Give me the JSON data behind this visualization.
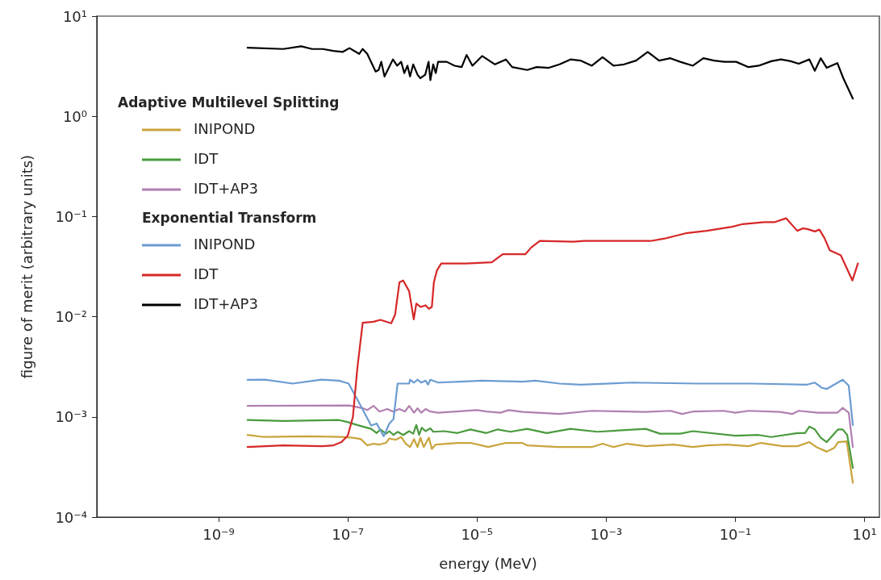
{
  "chart_data": {
    "type": "line",
    "xlabel": "energy (MeV)",
    "ylabel": "figure of merit (arbitrary units)",
    "log": "xy",
    "grid": false,
    "legend": "top left",
    "marker": "none",
    "line_style": "solid",
    "xlim": [
      1.3e-11,
      17
    ],
    "ylim": [
      0.0001,
      10
    ],
    "xticks": [
      {
        "value": 1e-09,
        "label": "10⁻⁹"
      },
      {
        "value": 1e-07,
        "label": "10⁻⁷"
      },
      {
        "value": 1e-05,
        "label": "10⁻⁵"
      },
      {
        "value": 0.001,
        "label": "10⁻³"
      },
      {
        "value": 0.1,
        "label": "10⁻¹"
      },
      {
        "value": 10,
        "label": "10¹"
      }
    ],
    "yticks": [
      {
        "value": 0.0001,
        "label": "10⁻⁴"
      },
      {
        "value": 0.001,
        "label": "10⁻³"
      },
      {
        "value": 0.01,
        "label": "10⁻²"
      },
      {
        "value": 0.1,
        "label": "10⁻¹"
      },
      {
        "value": 1,
        "label": "10⁰"
      },
      {
        "value": 10,
        "label": "10¹"
      }
    ],
    "annotations": [
      "Adaptive Multilevel Splitting",
      "Exponential Transform"
    ],
    "series": [
      {
        "name": "INIPOND",
        "color": "#c9a43c",
        "x": [
          2.8e-09,
          5e-09,
          2.5e-08,
          7.9e-08,
          1.2e-07,
          1.6e-07,
          2e-07,
          2.5e-07,
          3.1e-07,
          3.9e-07,
          4.4e-07,
          5.5e-07,
          6.7e-07,
          7.9e-07,
          9.2e-07,
          1.06e-06,
          1.2e-06,
          1.33e-06,
          1.5e-06,
          1.8e-06,
          2e-06,
          2.3e-06,
          5e-06,
          7.9e-06,
          1.5e-05,
          2.8e-05,
          5e-05,
          6e-05,
          0.00018,
          0.0006,
          0.00088,
          0.0013,
          0.0021,
          0.0041,
          0.011,
          0.022,
          0.037,
          0.074,
          0.16,
          0.25,
          0.54,
          0.92,
          1.4,
          1.8,
          2.6,
          3.4,
          3.9,
          5.3,
          6.6
        ],
        "values": [
          0.00066,
          0.00063,
          0.00064,
          0.00063,
          0.00062,
          0.0006,
          0.00052,
          0.00054,
          0.00053,
          0.00055,
          0.00061,
          0.00059,
          0.00063,
          0.00054,
          0.0005,
          0.0006,
          0.0005,
          0.00062,
          0.0005,
          0.00062,
          0.00048,
          0.00053,
          0.00055,
          0.00055,
          0.0005,
          0.00055,
          0.00055,
          0.00052,
          0.0005,
          0.0005,
          0.00054,
          0.0005,
          0.00054,
          0.00051,
          0.00053,
          0.0005,
          0.00052,
          0.00053,
          0.00051,
          0.00055,
          0.00051,
          0.00051,
          0.00056,
          0.0005,
          0.00045,
          0.00049,
          0.00056,
          0.00057,
          0.00022
        ]
      },
      {
        "name": "IDT",
        "color": "#4a9a3e",
        "x": [
          2.8e-09,
          1e-08,
          7.3e-08,
          9.8e-08,
          1.4e-07,
          2.3e-07,
          2.8e-07,
          3.2e-07,
          3.9e-07,
          4.4e-07,
          5.1e-07,
          5.9e-07,
          7.2e-07,
          8.9e-07,
          1.03e-06,
          1.15e-06,
          1.27e-06,
          1.4e-06,
          1.6e-06,
          1.9e-06,
          2.1e-06,
          3.1e-06,
          5e-06,
          7.9e-06,
          1.4e-05,
          2.1e-05,
          3.3e-05,
          6e-05,
          0.00012,
          0.00028,
          0.00073,
          0.0041,
          0.0068,
          0.014,
          0.022,
          0.1,
          0.23,
          0.36,
          0.92,
          1.2,
          1.4,
          1.7,
          2.1,
          2.6,
          3.9,
          4.6,
          5.4,
          6.6
        ],
        "values": [
          0.00093,
          0.00091,
          0.00093,
          0.00089,
          0.00083,
          0.00076,
          0.00069,
          0.00075,
          0.00068,
          0.00072,
          0.00066,
          0.00071,
          0.00066,
          0.00072,
          0.00068,
          0.00083,
          0.00066,
          0.00078,
          0.00072,
          0.00077,
          0.00071,
          0.00072,
          0.00069,
          0.00075,
          0.00069,
          0.00075,
          0.00071,
          0.00076,
          0.00069,
          0.00076,
          0.00071,
          0.00076,
          0.00068,
          0.00068,
          0.00072,
          0.00065,
          0.00066,
          0.00063,
          0.00069,
          0.00069,
          0.0008,
          0.00075,
          0.00062,
          0.00056,
          0.00075,
          0.00075,
          0.00066,
          0.00031
        ]
      },
      {
        "name": "IDT+AP3",
        "color": "#b07fb0",
        "x": [
          2.8e-09,
          1.06e-07,
          1.7e-07,
          2e-07,
          2.5e-07,
          3.1e-07,
          4.1e-07,
          5e-07,
          6.3e-07,
          7.7e-07,
          8.9e-07,
          1.06e-06,
          1.2e-06,
          1.37e-06,
          1.6e-06,
          1.9e-06,
          2.5e-06,
          1e-05,
          1.4e-05,
          2.3e-05,
          3.1e-05,
          5.1e-05,
          0.00019,
          0.0006,
          0.0041,
          0.0099,
          0.015,
          0.022,
          0.066,
          0.1,
          0.16,
          0.49,
          0.76,
          0.96,
          1.9,
          3.8,
          4.6,
          5.7,
          6.6
        ],
        "values": [
          0.00129,
          0.0013,
          0.00122,
          0.00117,
          0.00129,
          0.00113,
          0.0012,
          0.00113,
          0.0012,
          0.00113,
          0.00129,
          0.0011,
          0.00122,
          0.0011,
          0.0012,
          0.00113,
          0.0011,
          0.00117,
          0.00113,
          0.0011,
          0.00117,
          0.00112,
          0.00107,
          0.00115,
          0.00112,
          0.00115,
          0.00107,
          0.00113,
          0.00115,
          0.0011,
          0.00115,
          0.00112,
          0.00107,
          0.00115,
          0.0011,
          0.0011,
          0.00123,
          0.0011,
          0.0005
        ]
      },
      {
        "name": "INIPOND",
        "color": "#6b9bd2",
        "x": [
          2.8e-09,
          5.2e-09,
          1.4e-08,
          3.9e-08,
          7.3e-08,
          1.03e-07,
          1.4e-07,
          2.3e-07,
          2.8e-07,
          3.6e-07,
          4.4e-07,
          5.1e-07,
          5.9e-07,
          8.9e-07,
          9.2e-07,
          1.06e-06,
          1.2e-06,
          1.37e-06,
          1.6e-06,
          1.74e-06,
          1.9e-06,
          2.5e-06,
          5.5e-06,
          1.2e-05,
          5.1e-05,
          8e-05,
          0.00019,
          0.0004,
          0.0025,
          0.026,
          0.18,
          1.3,
          1.7,
          2.2,
          2.6,
          3.4,
          4.6,
          5.7,
          6.6
        ],
        "values": [
          0.00234,
          0.00235,
          0.00215,
          0.00235,
          0.0023,
          0.00215,
          0.0015,
          0.00082,
          0.00086,
          0.00064,
          0.00086,
          0.00095,
          0.00215,
          0.00215,
          0.00235,
          0.0022,
          0.00235,
          0.0022,
          0.0023,
          0.0021,
          0.00235,
          0.0022,
          0.00225,
          0.0023,
          0.00225,
          0.0023,
          0.00215,
          0.0021,
          0.0022,
          0.00215,
          0.00215,
          0.0021,
          0.0022,
          0.00195,
          0.0019,
          0.0021,
          0.00235,
          0.00205,
          0.00083
        ]
      },
      {
        "name": "IDT",
        "color": "#d62728",
        "x": [
          2.8e-09,
          1e-08,
          4e-08,
          6e-08,
          8e-08,
          1e-07,
          1.2e-07,
          1.4e-07,
          1.7e-07,
          2.5e-07,
          3.2e-07,
          4.7e-07,
          5.4e-07,
          6.3e-07,
          7.2e-07,
          8.9e-07,
          1.05e-06,
          1.15e-06,
          1.35e-06,
          1.6e-06,
          1.8e-06,
          2e-06,
          2.15e-06,
          2.4e-06,
          2.8e-06,
          6.9e-06,
          1.7e-05,
          2.5e-05,
          5.6e-05,
          6.9e-05,
          9.4e-05,
          0.00031,
          0.00046,
          0.0049,
          0.0078,
          0.017,
          0.036,
          0.089,
          0.13,
          0.28,
          0.41,
          0.61,
          0.91,
          1.1,
          1.3,
          1.7,
          2,
          2.4,
          2.9,
          4.3,
          6.5,
          7.9
        ],
        "values": [
          0.0005,
          0.00052,
          0.00051,
          0.00052,
          0.00056,
          0.00065,
          0.001,
          0.003,
          0.0087,
          0.0089,
          0.0093,
          0.0086,
          0.0105,
          0.022,
          0.023,
          0.018,
          0.0094,
          0.0135,
          0.0125,
          0.013,
          0.012,
          0.0125,
          0.022,
          0.029,
          0.034,
          0.034,
          0.035,
          0.042,
          0.042,
          0.049,
          0.057,
          0.056,
          0.057,
          0.057,
          0.06,
          0.068,
          0.072,
          0.079,
          0.084,
          0.088,
          0.088,
          0.096,
          0.072,
          0.076,
          0.075,
          0.071,
          0.074,
          0.061,
          0.046,
          0.041,
          0.023,
          0.034
        ]
      },
      {
        "name": "IDT+AP3",
        "color": "#000000",
        "x": [
          2.8e-09,
          1e-08,
          1.9e-08,
          2.8e-08,
          4.1e-08,
          6e-08,
          8.4e-08,
          1.06e-07,
          1.5e-07,
          1.7e-07,
          2e-07,
          2.7e-07,
          3e-07,
          3.3e-07,
          3.7e-07,
          5e-07,
          5.8e-07,
          6.7e-07,
          7.5e-07,
          8.4e-07,
          9.2e-07,
          1.03e-06,
          1.2e-06,
          1.33e-06,
          1.58e-06,
          1.78e-06,
          1.9e-06,
          2.1e-06,
          2.3e-06,
          2.5e-06,
          3.4e-06,
          4.5e-06,
          5.8e-06,
          6.9e-06,
          8.5e-06,
          1.2e-05,
          1.9e-05,
          2.8e-05,
          3.5e-05,
          6e-05,
          8.4e-05,
          0.00013,
          0.00019,
          0.00028,
          0.0004,
          0.0006,
          0.00088,
          0.0013,
          0.0019,
          0.0029,
          0.0044,
          0.0066,
          0.0099,
          0.014,
          0.022,
          0.032,
          0.047,
          0.068,
          0.103,
          0.16,
          0.23,
          0.36,
          0.51,
          0.72,
          0.96,
          1.4,
          1.7,
          2.1,
          2.6,
          3.8,
          4.7,
          6.6
        ],
        "values": [
          4.85,
          4.7,
          5.0,
          4.7,
          4.7,
          4.5,
          4.4,
          4.8,
          4.2,
          4.7,
          4.2,
          2.8,
          2.9,
          3.5,
          2.5,
          3.7,
          3.2,
          3.5,
          2.7,
          3.2,
          2.5,
          3.3,
          2.6,
          2.4,
          2.6,
          3.5,
          2.3,
          3.3,
          2.7,
          3.5,
          3.5,
          3.2,
          3.1,
          4.1,
          3.2,
          4.0,
          3.3,
          3.7,
          3.1,
          2.9,
          3.1,
          3.05,
          3.3,
          3.7,
          3.6,
          3.2,
          3.9,
          3.2,
          3.3,
          3.6,
          4.4,
          3.6,
          3.8,
          3.5,
          3.2,
          3.8,
          3.6,
          3.5,
          3.5,
          3.1,
          3.2,
          3.55,
          3.7,
          3.55,
          3.35,
          3.7,
          2.85,
          3.8,
          3.05,
          3.4,
          2.4,
          1.5
        ]
      }
    ]
  }
}
